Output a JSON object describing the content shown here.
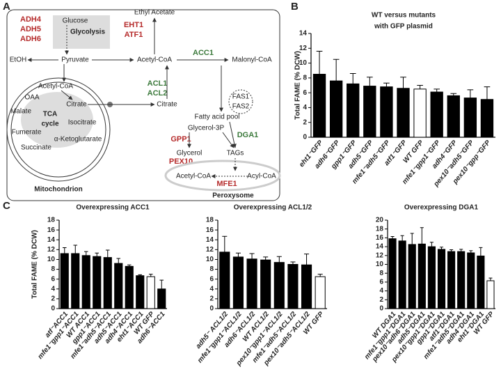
{
  "panel_labels": [
    "A",
    "B",
    "C"
  ],
  "diagram": {
    "adh": [
      "ADH4",
      "ADH5",
      "ADH6"
    ],
    "glucose": "Glucose",
    "glycolysis": "Glycolysis",
    "pyruvate": "Pyruvate",
    "etoh": "EtOH",
    "eht_atf": [
      "EHT1",
      "ATF1"
    ],
    "ethyl_acetate": "Ethyl Acetate",
    "acetyl_coa": "Acetyl-CoA",
    "acc1": "ACC1",
    "malonyl_coa": "Malonyl-CoA",
    "fas": [
      "FAS1",
      "FAS2"
    ],
    "fatty_acid_pool": "Fatty acid pool",
    "acl": [
      "ACL1",
      "ACL2"
    ],
    "citrate": "Citrate",
    "glycerol_3p": "Glycerol-3P",
    "dga1": "DGA1",
    "gpp1": "GPP1",
    "glycerol": "Glycerol",
    "tags": "TAGs",
    "pex10": "PEX10",
    "perox_acetyl_coa": "Acetyl-CoA",
    "mfe1": "MFE1",
    "acyl_coa": "Acyl-CoA",
    "peroxysome": "Peroxysome",
    "mito": {
      "acetyl_coa": "Acetyl-CoA",
      "oaa": "OAA",
      "citrate": "Citrate",
      "malate": "Malate",
      "tca": [
        "TCA",
        "cycle"
      ],
      "isocitrate": "Isocitrate",
      "fumerate": "Fumerate",
      "succinate": "Succinate",
      "akg": "α-Ketoglutarate",
      "label": "Mitochondrion"
    }
  },
  "chart_data": [
    {
      "type": "bar",
      "title": [
        "WT versus mutants",
        "with GFP plasmid"
      ],
      "ylabel": "Total FAME (% DCW)",
      "categories": [
        "eht1⁻GFP",
        "adh6⁻GFP",
        "gpp1⁻GFP",
        "adh5⁻GFP",
        "mfe1⁻adh5⁻GFP",
        "atf1⁻GFP",
        "WT GFP",
        "mfe1⁻gpp1⁻GFP",
        "adh4⁻GFP",
        "pex10⁻adh5⁻GFP",
        "pex10⁻gpp⁻GFP"
      ],
      "values": [
        8.5,
        7.6,
        7.2,
        6.9,
        6.8,
        6.6,
        6.5,
        6.1,
        5.6,
        5.3,
        5.1
      ],
      "errors": [
        3.1,
        2.9,
        1.4,
        1.2,
        0.5,
        1.5,
        0.5,
        0.4,
        0.3,
        1.1,
        1.7
      ],
      "colors": [
        "#000000",
        "#000000",
        "#000000",
        "#000000",
        "#000000",
        "#000000",
        "#ffffff",
        "#000000",
        "#000000",
        "#000000",
        "#000000"
      ],
      "ylim": [
        0,
        14
      ],
      "yticks": [
        0,
        2,
        4,
        6,
        8,
        10,
        12,
        14
      ]
    },
    {
      "type": "bar",
      "title": "Overexpressing ACC1",
      "ylabel": "Total FAME (% DCW)",
      "categories": [
        "atf⁻ACC1",
        "mfe1⁻gpp1⁻ACC1",
        "WT ACC1",
        "gpp1⁻ACC1",
        "mfe1⁻adh5⁻ACC1",
        "adh5⁻ACC1",
        "adh4⁻ACC1",
        "eht1⁻ACC1",
        "WT GFP",
        "adh6⁻ACC1"
      ],
      "values": [
        11.2,
        11.2,
        10.8,
        10.6,
        10.4,
        9.2,
        8.6,
        6.7,
        6.5,
        4.0
      ],
      "errors": [
        1.2,
        1.7,
        0.8,
        0.7,
        1.5,
        1.0,
        0.3,
        0.2,
        0.5,
        1.8
      ],
      "colors": [
        "#000000",
        "#000000",
        "#000000",
        "#000000",
        "#000000",
        "#000000",
        "#000000",
        "#000000",
        "#ffffff",
        "#000000"
      ],
      "ylim": [
        0,
        18
      ],
      "yticks": [
        0,
        2,
        4,
        6,
        8,
        10,
        12,
        14,
        16,
        18
      ]
    },
    {
      "type": "bar",
      "title": "Overexpressing ACL1/2",
      "categories": [
        "adh5⁻ ACL1/2",
        "mfe1⁻gpp1⁻ACL1/2",
        "adh6⁻ACL1/2",
        "WT ACL1/2",
        "pex10⁻gpp1⁻ACL1/2",
        "mfe1⁻adh5⁻ACL1/2",
        "pex10⁻adh5⁻ACL1/2",
        "WT GFP"
      ],
      "values": [
        11.5,
        10.5,
        10.1,
        9.9,
        9.4,
        9.0,
        8.9,
        6.5
      ],
      "errors": [
        3.2,
        0.8,
        1.1,
        0.6,
        1.2,
        0.5,
        2.2,
        0.5
      ],
      "colors": [
        "#000000",
        "#000000",
        "#000000",
        "#000000",
        "#000000",
        "#000000",
        "#000000",
        "#ffffff"
      ],
      "ylim": [
        0,
        18
      ],
      "yticks": [
        0,
        2,
        4,
        6,
        8,
        10,
        12,
        14,
        16,
        18
      ]
    },
    {
      "type": "bar",
      "title": "Overexpressing DGA1",
      "categories": [
        "WT DGA1",
        "mfe1⁻gpp1⁻DGA1",
        "pex10⁻adh6⁻DGA1",
        "adh5⁻DGA1",
        "pex10⁻gpp1⁻DGA1",
        "gpp1⁻DGA1",
        "atf1⁻DGA1",
        "mfe1⁻adh5⁻DGA1",
        "adh4⁻DGA1",
        "eht1⁻DGA1",
        "WT GFP"
      ],
      "values": [
        15.8,
        15.3,
        14.5,
        14.6,
        14.0,
        13.4,
        12.9,
        12.9,
        12.6,
        11.9,
        6.3
      ],
      "errors": [
        0.5,
        1.2,
        2.5,
        3.7,
        1.0,
        0.5,
        0.4,
        0.5,
        0.5,
        1.9,
        0.6
      ],
      "colors": [
        "#000000",
        "#000000",
        "#000000",
        "#000000",
        "#000000",
        "#000000",
        "#000000",
        "#000000",
        "#000000",
        "#000000",
        "#ffffff"
      ],
      "ylim": [
        0,
        20
      ],
      "yticks": [
        0,
        2,
        4,
        6,
        8,
        10,
        12,
        14,
        16,
        18,
        20
      ]
    }
  ]
}
